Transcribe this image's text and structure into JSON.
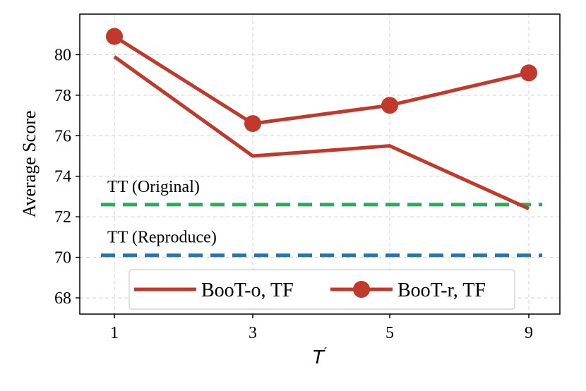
{
  "chart_data": {
    "type": "line",
    "title": "",
    "xlabel": "T",
    "xlabel_superscript": "′",
    "ylabel": "Average Score",
    "categories": [
      "1",
      "3",
      "5",
      "9"
    ],
    "ylim": [
      67.2,
      82.0
    ],
    "yticks": [
      68,
      70,
      72,
      74,
      76,
      78,
      80
    ],
    "grid": true,
    "series": [
      {
        "name": "BooT-o, TF",
        "values": [
          79.9,
          75.0,
          75.5,
          72.4
        ],
        "color": "#c0392b",
        "marker": "none"
      },
      {
        "name": "BooT-r, TF",
        "values": [
          80.9,
          76.6,
          77.5,
          79.1
        ],
        "color": "#c0392b",
        "marker": "circle"
      }
    ],
    "reference_lines": [
      {
        "label": "TT (Original)",
        "value": 72.6,
        "color": "#2eaa5c",
        "style": "dashed"
      },
      {
        "label": "TT (Reproduce)",
        "value": 70.1,
        "color": "#1f77b4",
        "style": "dashed"
      }
    ],
    "legend_position": "lower-center"
  }
}
